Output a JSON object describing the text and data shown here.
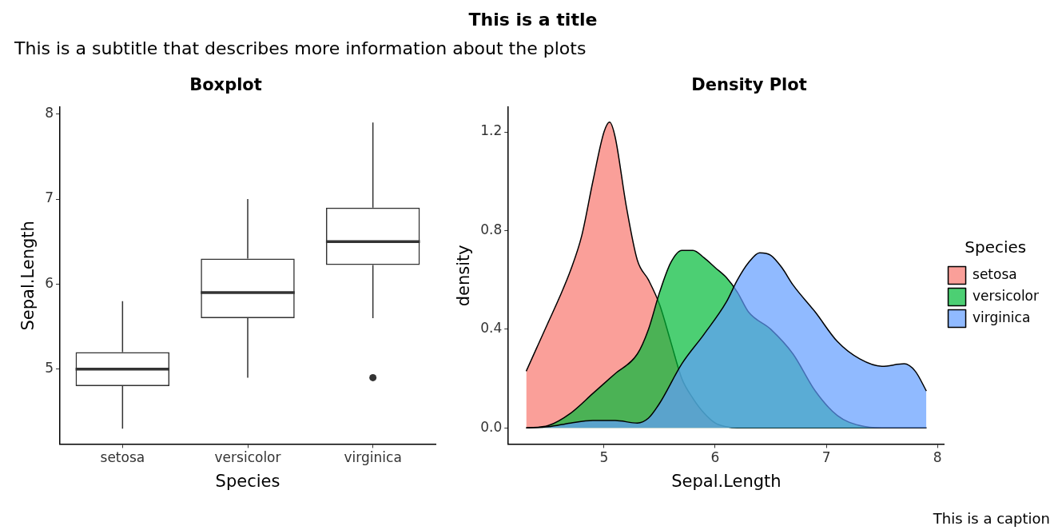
{
  "chart_data": [
    {
      "type": "box",
      "title": "Boxplot",
      "xlabel": "Species",
      "ylabel": "Sepal.Length",
      "annotations": [
        "This is a title",
        "This is a subtitle that describes more information about the plots"
      ],
      "categories": [
        "setosa",
        "versicolor",
        "virginica"
      ],
      "boxes": [
        {
          "low": 4.3,
          "q1": 4.8,
          "median": 5.0,
          "q3": 5.2,
          "high": 5.8
        },
        {
          "low": 4.9,
          "q1": 5.6,
          "median": 5.9,
          "q3": 6.3,
          "high": 7.0
        },
        {
          "low": 5.6,
          "q1": 6.225,
          "median": 6.5,
          "q3": 6.9,
          "high": 7.9,
          "outliers": [
            4.9
          ]
        }
      ],
      "color": "#333333",
      "ylim": [
        4.12,
        8.08
      ],
      "yticks": [
        5,
        6,
        7,
        8
      ],
      "grid": false
    },
    {
      "type": "area",
      "title": "Density Plot",
      "xlabel": "Sepal.Length",
      "ylabel": "density",
      "legend_title": "Species",
      "annotations": [
        "This is a caption"
      ],
      "series": [
        {
          "name": "setosa",
          "color": "#f8766d",
          "x": [
            4.3,
            4.4,
            4.5,
            4.6,
            4.7,
            4.8,
            4.9,
            5.0,
            5.05,
            5.1,
            5.2,
            5.3,
            5.4,
            5.5,
            5.6,
            5.7,
            5.8,
            5.9,
            6.0,
            6.1,
            6.2,
            7.9
          ],
          "values": [
            0.23,
            0.33,
            0.43,
            0.53,
            0.64,
            0.78,
            1.0,
            1.2,
            1.24,
            1.18,
            0.9,
            0.68,
            0.6,
            0.5,
            0.35,
            0.2,
            0.12,
            0.06,
            0.02,
            0.005,
            0,
            0
          ]
        },
        {
          "name": "versicolor",
          "color": "#00ba38",
          "x": [
            4.3,
            4.5,
            4.7,
            4.9,
            5.1,
            5.3,
            5.4,
            5.5,
            5.6,
            5.7,
            5.8,
            5.9,
            6.0,
            6.1,
            6.2,
            6.3,
            6.5,
            6.7,
            6.9,
            7.1,
            7.3,
            7.5,
            7.9
          ],
          "values": [
            0,
            0.01,
            0.06,
            0.14,
            0.22,
            0.3,
            0.4,
            0.55,
            0.67,
            0.72,
            0.72,
            0.69,
            0.65,
            0.61,
            0.55,
            0.47,
            0.4,
            0.3,
            0.15,
            0.05,
            0.01,
            0,
            0
          ]
        },
        {
          "name": "virginica",
          "color": "#619cff",
          "x": [
            4.3,
            4.5,
            4.7,
            4.9,
            5.1,
            5.3,
            5.4,
            5.5,
            5.7,
            5.9,
            6.1,
            6.2,
            6.3,
            6.4,
            6.5,
            6.6,
            6.7,
            6.9,
            7.1,
            7.3,
            7.5,
            7.7,
            7.8,
            7.9
          ],
          "values": [
            0,
            0.005,
            0.02,
            0.03,
            0.03,
            0.02,
            0.04,
            0.1,
            0.26,
            0.38,
            0.51,
            0.6,
            0.67,
            0.71,
            0.7,
            0.65,
            0.58,
            0.47,
            0.35,
            0.28,
            0.25,
            0.26,
            0.23,
            0.15
          ]
        }
      ],
      "xlim": [
        4.14,
        8.06
      ],
      "xticks": [
        5,
        6,
        7,
        8
      ],
      "ylim": [
        -0.065,
        1.3
      ],
      "yticks": [
        {
          "value": 0,
          "label": "0.0"
        },
        0.4,
        0.8,
        1.2
      ],
      "grid": false,
      "legend": "right"
    }
  ]
}
